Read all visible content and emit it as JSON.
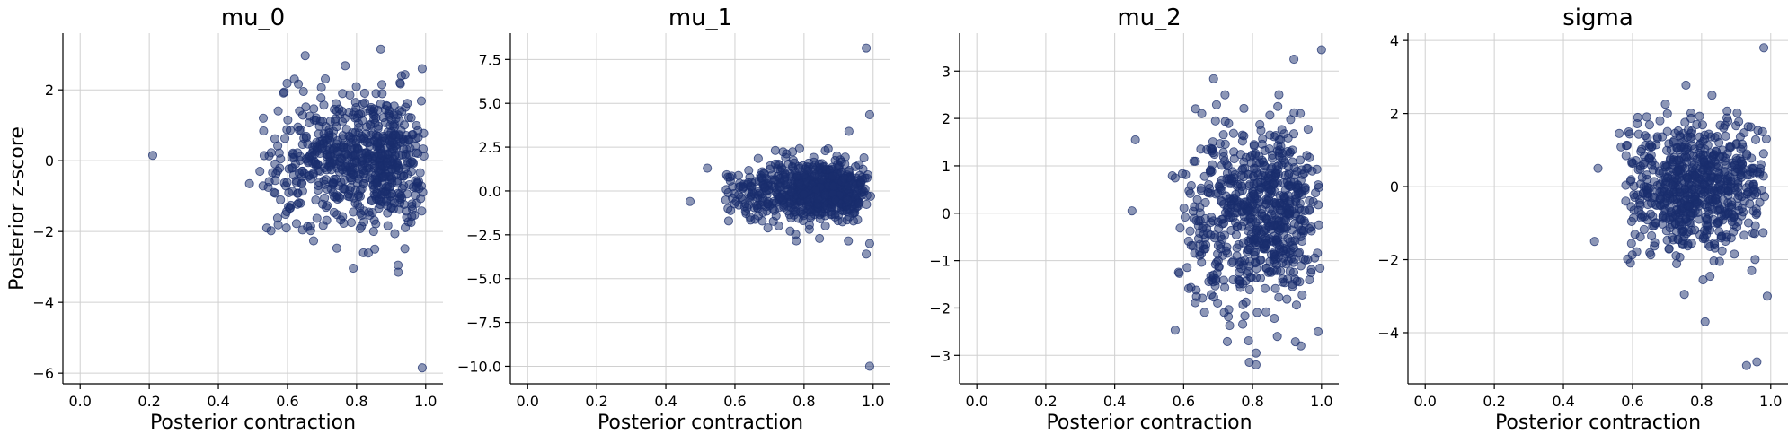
{
  "chart_data": [
    {
      "type": "scatter",
      "title": "mu_0",
      "xlabel": "Posterior contraction",
      "ylabel": "Posterior z-score",
      "xlim": [
        -0.05,
        1.05
      ],
      "ylim": [
        -6.3,
        3.6
      ],
      "xticks": [
        0.0,
        0.2,
        0.4,
        0.6,
        0.8,
        1.0
      ],
      "xtick_labels": [
        "0.0",
        "0.2",
        "0.4",
        "0.6",
        "0.8",
        "1.0"
      ],
      "yticks": [
        -6,
        -4,
        -2,
        0,
        2
      ],
      "ytick_labels": [
        "−6",
        "−4",
        "−2",
        "0",
        "2"
      ],
      "grid": true,
      "marker_color": "#1a2e6e",
      "marker_alpha": 0.5,
      "cluster": {
        "x_min": 0.5,
        "x_max": 1.0,
        "x_mode": 0.92,
        "y_sd": 0.9
      },
      "points": [
        [
          0.21,
          0.15
        ],
        [
          0.99,
          -5.85
        ],
        [
          0.53,
          1.2
        ],
        [
          0.54,
          -1.9
        ],
        [
          0.49,
          -0.65
        ],
        [
          0.87,
          3.15
        ],
        [
          0.93,
          2.4
        ],
        [
          0.99,
          2.6
        ],
        [
          0.92,
          -2.95
        ],
        [
          0.82,
          -2.6
        ],
        [
          0.62,
          2.3
        ],
        [
          0.58,
          0.05
        ]
      ]
    },
    {
      "type": "scatter",
      "title": "mu_1",
      "xlabel": "Posterior contraction",
      "ylabel": "",
      "xlim": [
        -0.05,
        1.05
      ],
      "ylim": [
        -11.0,
        9.0
      ],
      "xticks": [
        0.0,
        0.2,
        0.4,
        0.6,
        0.8,
        1.0
      ],
      "xtick_labels": [
        "0.0",
        "0.2",
        "0.4",
        "0.6",
        "0.8",
        "1.0"
      ],
      "yticks": [
        -10.0,
        -7.5,
        -5.0,
        -2.5,
        0.0,
        2.5,
        5.0,
        7.5
      ],
      "ytick_labels": [
        "−10.0",
        "−7.5",
        "−5.0",
        "−2.5",
        "0.0",
        "2.5",
        "5.0",
        "7.5"
      ],
      "grid": true,
      "marker_color": "#1a2e6e",
      "marker_alpha": 0.5,
      "cluster": {
        "x_min": 0.55,
        "x_max": 1.0,
        "x_mode": 0.9,
        "y_sd": 0.9
      },
      "points": [
        [
          0.98,
          8.15
        ],
        [
          0.99,
          4.35
        ],
        [
          0.99,
          -10.0
        ],
        [
          0.47,
          -0.6
        ],
        [
          0.52,
          1.3
        ],
        [
          0.98,
          -3.6
        ],
        [
          0.99,
          -3.0
        ],
        [
          0.93,
          3.4
        ],
        [
          0.58,
          -1.0
        ]
      ]
    },
    {
      "type": "scatter",
      "title": "mu_2",
      "xlabel": "Posterior contraction",
      "ylabel": "",
      "xlim": [
        -0.05,
        1.05
      ],
      "ylim": [
        -3.6,
        3.8
      ],
      "xticks": [
        0.0,
        0.2,
        0.4,
        0.6,
        0.8,
        1.0
      ],
      "xtick_labels": [
        "0.0",
        "0.2",
        "0.4",
        "0.6",
        "0.8",
        "1.0"
      ],
      "yticks": [
        -3,
        -2,
        -1,
        0,
        1,
        2,
        3
      ],
      "ytick_labels": [
        "−3",
        "−2",
        "−1",
        "0",
        "1",
        "2",
        "3"
      ],
      "grid": true,
      "marker_color": "#1a2e6e",
      "marker_alpha": 0.5,
      "cluster": {
        "x_min": 0.55,
        "x_max": 1.0,
        "x_mode": 0.88,
        "y_sd": 0.95
      },
      "points": [
        [
          1.0,
          3.45
        ],
        [
          0.92,
          3.25
        ],
        [
          0.46,
          1.55
        ],
        [
          0.81,
          -2.95
        ],
        [
          0.81,
          -3.2
        ],
        [
          0.99,
          -2.5
        ],
        [
          0.45,
          0.05
        ],
        [
          0.94,
          -2.8
        ],
        [
          0.72,
          2.5
        ]
      ]
    },
    {
      "type": "scatter",
      "title": "sigma",
      "xlabel": "Posterior contraction",
      "ylabel": "",
      "xlim": [
        -0.05,
        1.05
      ],
      "ylim": [
        -5.4,
        4.2
      ],
      "xticks": [
        0.0,
        0.2,
        0.4,
        0.6,
        0.8,
        1.0
      ],
      "xtick_labels": [
        "0.0",
        "0.2",
        "0.4",
        "0.6",
        "0.8",
        "1.0"
      ],
      "yticks": [
        -4,
        -2,
        0,
        2,
        4
      ],
      "ytick_labels": [
        "−4",
        "−2",
        "0",
        "2",
        "4"
      ],
      "grid": true,
      "marker_color": "#1a2e6e",
      "marker_alpha": 0.5,
      "cluster": {
        "x_min": 0.55,
        "x_max": 1.0,
        "x_mode": 0.76,
        "y_sd": 0.85
      },
      "points": [
        [
          0.98,
          3.8
        ],
        [
          0.96,
          -4.8
        ],
        [
          0.93,
          -4.9
        ],
        [
          0.49,
          -1.5
        ],
        [
          0.81,
          -3.7
        ],
        [
          0.5,
          0.5
        ],
        [
          0.83,
          2.5
        ],
        [
          0.99,
          -3.0
        ],
        [
          0.75,
          -2.95
        ]
      ]
    }
  ]
}
